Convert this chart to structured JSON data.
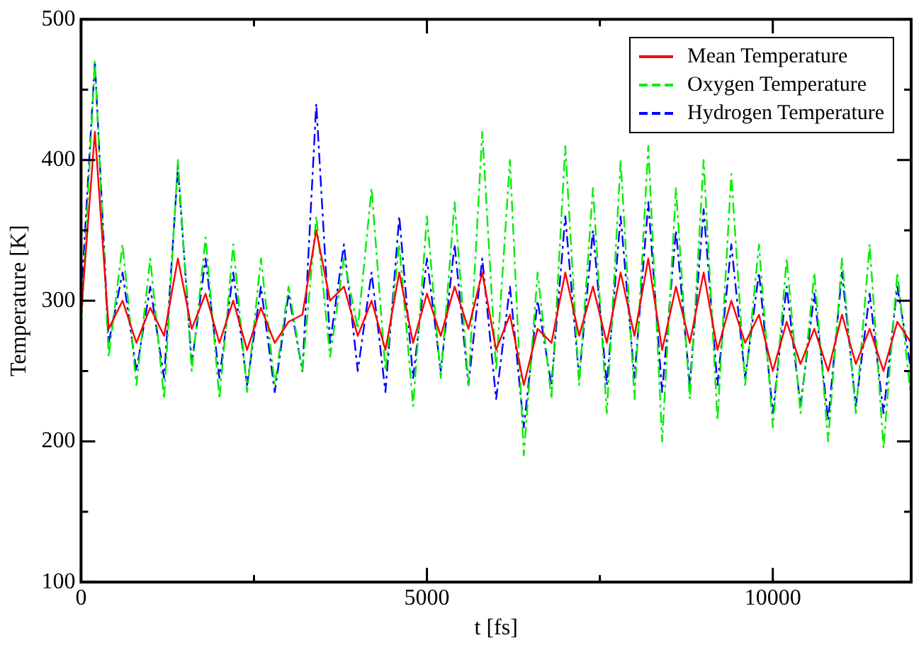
{
  "chart_data": {
    "type": "line",
    "xlabel": "t [fs]",
    "ylabel": "Temperature [K]",
    "x": [
      0,
      200,
      400,
      600,
      800,
      1000,
      1200,
      1400,
      1600,
      1800,
      2000,
      2200,
      2400,
      2600,
      2800,
      3000,
      3200,
      3400,
      3600,
      3800,
      4000,
      4200,
      4400,
      4600,
      4800,
      5000,
      5200,
      5400,
      5600,
      5800,
      6000,
      6200,
      6400,
      6600,
      6800,
      7000,
      7200,
      7400,
      7600,
      7800,
      8000,
      8200,
      8400,
      8600,
      8800,
      9000,
      9200,
      9400,
      9600,
      9800,
      10000,
      10200,
      10400,
      10600,
      10800,
      11000,
      11200,
      11400,
      11600,
      11800,
      12000
    ],
    "xlim": [
      0,
      12000
    ],
    "xticks": [
      0,
      {
        "value": 2500,
        "label": null
      },
      5000,
      {
        "value": 7500,
        "label": null
      },
      10000
    ],
    "ylim": [
      100,
      500
    ],
    "yticks": [
      100,
      {
        "value": 150,
        "label": null
      },
      200,
      {
        "value": 250,
        "label": null
      },
      300,
      {
        "value": 350,
        "label": null
      },
      400,
      {
        "value": 450,
        "label": null
      },
      500
    ],
    "grid": false,
    "legend": "top right",
    "marker": "none",
    "series": [
      {
        "name": "Mean Temperature",
        "color": "#ff0000",
        "line_style": "solid",
        "values": [
          290,
          420,
          280,
          300,
          270,
          295,
          275,
          330,
          280,
          305,
          270,
          300,
          265,
          295,
          270,
          285,
          290,
          350,
          300,
          310,
          275,
          300,
          265,
          320,
          270,
          305,
          275,
          310,
          280,
          320,
          265,
          290,
          240,
          280,
          270,
          320,
          275,
          310,
          270,
          320,
          275,
          330,
          265,
          310,
          270,
          320,
          265,
          300,
          270,
          290,
          250,
          285,
          255,
          280,
          250,
          290,
          255,
          280,
          250,
          285,
          270
        ]
      },
      {
        "name": "Oxygen Temperature",
        "color": "#00ee00",
        "line_style": "dashed",
        "values": [
          280,
          470,
          260,
          340,
          240,
          330,
          230,
          400,
          250,
          345,
          230,
          340,
          235,
          330,
          240,
          310,
          250,
          360,
          260,
          330,
          280,
          380,
          250,
          340,
          225,
          360,
          245,
          370,
          240,
          420,
          250,
          400,
          190,
          320,
          230,
          410,
          240,
          380,
          220,
          400,
          230,
          410,
          200,
          380,
          230,
          400,
          215,
          390,
          240,
          340,
          210,
          330,
          220,
          320,
          200,
          330,
          220,
          340,
          195,
          320,
          230
        ]
      },
      {
        "name": "Hydrogen Temperature",
        "color": "#0000ff",
        "line_style": "dashed",
        "values": [
          300,
          470,
          270,
          320,
          250,
          310,
          245,
          395,
          255,
          330,
          245,
          320,
          240,
          310,
          235,
          305,
          250,
          440,
          270,
          340,
          250,
          320,
          235,
          360,
          245,
          330,
          250,
          340,
          240,
          330,
          230,
          310,
          210,
          300,
          240,
          360,
          245,
          350,
          240,
          360,
          245,
          370,
          235,
          350,
          240,
          365,
          240,
          340,
          245,
          320,
          220,
          310,
          225,
          305,
          215,
          320,
          225,
          305,
          220,
          310,
          250
        ]
      }
    ]
  }
}
